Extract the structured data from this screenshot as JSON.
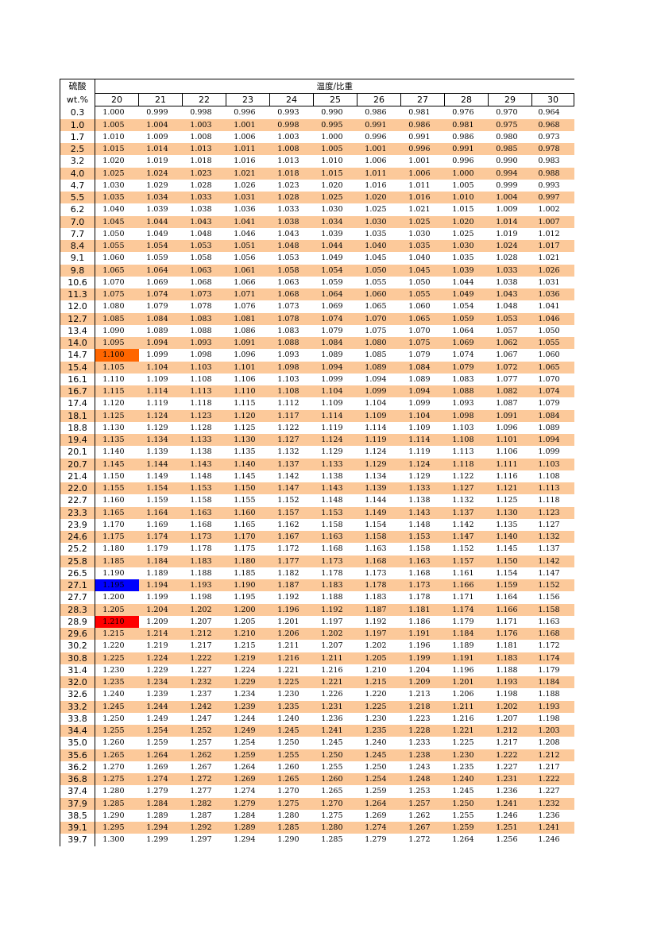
{
  "header": {
    "acid_label": "硫酸",
    "unit_label": "wt.%",
    "title": "温度/比重",
    "temperatures": [
      "20",
      "21",
      "22",
      "23",
      "24",
      "25",
      "26",
      "27",
      "28",
      "29",
      "30"
    ]
  },
  "colors": {
    "shade": "#fcc99a",
    "orange": "#ff6600",
    "blue": "#0000ff",
    "red": "#ff0000"
  },
  "highlights": [
    {
      "row": 20,
      "col": 0,
      "color": "orange"
    },
    {
      "row": 39,
      "col": 0,
      "color": "blue"
    },
    {
      "row": 42,
      "col": 0,
      "color": "red"
    }
  ],
  "rows": [
    {
      "wt": "0.3",
      "values": [
        "1.000",
        "0.999",
        "0.998",
        "0.996",
        "0.993",
        "0.990",
        "0.986",
        "0.981",
        "0.976",
        "0.970",
        "0.964"
      ]
    },
    {
      "wt": "1.0",
      "values": [
        "1.005",
        "1.004",
        "1.003",
        "1.001",
        "0.998",
        "0.995",
        "0.991",
        "0.986",
        "0.981",
        "0.975",
        "0.968"
      ]
    },
    {
      "wt": "1.7",
      "values": [
        "1.010",
        "1.009",
        "1.008",
        "1.006",
        "1.003",
        "1.000",
        "0.996",
        "0.991",
        "0.986",
        "0.980",
        "0.973"
      ]
    },
    {
      "wt": "2.5",
      "values": [
        "1.015",
        "1.014",
        "1.013",
        "1.011",
        "1.008",
        "1.005",
        "1.001",
        "0.996",
        "0.991",
        "0.985",
        "0.978"
      ]
    },
    {
      "wt": "3.2",
      "values": [
        "1.020",
        "1.019",
        "1.018",
        "1.016",
        "1.013",
        "1.010",
        "1.006",
        "1.001",
        "0.996",
        "0.990",
        "0.983"
      ]
    },
    {
      "wt": "4.0",
      "values": [
        "1.025",
        "1.024",
        "1.023",
        "1.021",
        "1.018",
        "1.015",
        "1.011",
        "1.006",
        "1.000",
        "0.994",
        "0.988"
      ]
    },
    {
      "wt": "4.7",
      "values": [
        "1.030",
        "1.029",
        "1.028",
        "1.026",
        "1.023",
        "1.020",
        "1.016",
        "1.011",
        "1.005",
        "0.999",
        "0.993"
      ]
    },
    {
      "wt": "5.5",
      "values": [
        "1.035",
        "1.034",
        "1.033",
        "1.031",
        "1.028",
        "1.025",
        "1.020",
        "1.016",
        "1.010",
        "1.004",
        "0.997"
      ]
    },
    {
      "wt": "6.2",
      "values": [
        "1.040",
        "1.039",
        "1.038",
        "1.036",
        "1.033",
        "1.030",
        "1.025",
        "1.021",
        "1.015",
        "1.009",
        "1.002"
      ]
    },
    {
      "wt": "7.0",
      "values": [
        "1.045",
        "1.044",
        "1.043",
        "1.041",
        "1.038",
        "1.034",
        "1.030",
        "1.025",
        "1.020",
        "1.014",
        "1.007"
      ]
    },
    {
      "wt": "7.7",
      "values": [
        "1.050",
        "1.049",
        "1.048",
        "1.046",
        "1.043",
        "1.039",
        "1.035",
        "1.030",
        "1.025",
        "1.019",
        "1.012"
      ]
    },
    {
      "wt": "8.4",
      "values": [
        "1.055",
        "1.054",
        "1.053",
        "1.051",
        "1.048",
        "1.044",
        "1.040",
        "1.035",
        "1.030",
        "1.024",
        "1.017"
      ]
    },
    {
      "wt": "9.1",
      "values": [
        "1.060",
        "1.059",
        "1.058",
        "1.056",
        "1.053",
        "1.049",
        "1.045",
        "1.040",
        "1.035",
        "1.028",
        "1.021"
      ]
    },
    {
      "wt": "9.8",
      "values": [
        "1.065",
        "1.064",
        "1.063",
        "1.061",
        "1.058",
        "1.054",
        "1.050",
        "1.045",
        "1.039",
        "1.033",
        "1.026"
      ]
    },
    {
      "wt": "10.6",
      "values": [
        "1.070",
        "1.069",
        "1.068",
        "1.066",
        "1.063",
        "1.059",
        "1.055",
        "1.050",
        "1.044",
        "1.038",
        "1.031"
      ]
    },
    {
      "wt": "11.3",
      "values": [
        "1.075",
        "1.074",
        "1.073",
        "1.071",
        "1.068",
        "1.064",
        "1.060",
        "1.055",
        "1.049",
        "1.043",
        "1.036"
      ]
    },
    {
      "wt": "12.0",
      "values": [
        "1.080",
        "1.079",
        "1.078",
        "1.076",
        "1.073",
        "1.069",
        "1.065",
        "1.060",
        "1.054",
        "1.048",
        "1.041"
      ]
    },
    {
      "wt": "12.7",
      "values": [
        "1.085",
        "1.084",
        "1.083",
        "1.081",
        "1.078",
        "1.074",
        "1.070",
        "1.065",
        "1.059",
        "1.053",
        "1.046"
      ]
    },
    {
      "wt": "13.4",
      "values": [
        "1.090",
        "1.089",
        "1.088",
        "1.086",
        "1.083",
        "1.079",
        "1.075",
        "1.070",
        "1.064",
        "1.057",
        "1.050"
      ]
    },
    {
      "wt": "14.0",
      "values": [
        "1.095",
        "1.094",
        "1.093",
        "1.091",
        "1.088",
        "1.084",
        "1.080",
        "1.075",
        "1.069",
        "1.062",
        "1.055"
      ]
    },
    {
      "wt": "14.7",
      "values": [
        "1.100",
        "1.099",
        "1.098",
        "1.096",
        "1.093",
        "1.089",
        "1.085",
        "1.079",
        "1.074",
        "1.067",
        "1.060"
      ]
    },
    {
      "wt": "15.4",
      "values": [
        "1.105",
        "1.104",
        "1.103",
        "1.101",
        "1.098",
        "1.094",
        "1.089",
        "1.084",
        "1.079",
        "1.072",
        "1.065"
      ]
    },
    {
      "wt": "16.1",
      "values": [
        "1.110",
        "1.109",
        "1.108",
        "1.106",
        "1.103",
        "1.099",
        "1.094",
        "1.089",
        "1.083",
        "1.077",
        "1.070"
      ]
    },
    {
      "wt": "16.7",
      "values": [
        "1.115",
        "1.114",
        "1.113",
        "1.110",
        "1.108",
        "1.104",
        "1.099",
        "1.094",
        "1.088",
        "1.082",
        "1.074"
      ]
    },
    {
      "wt": "17.4",
      "values": [
        "1.120",
        "1.119",
        "1.118",
        "1.115",
        "1.112",
        "1.109",
        "1.104",
        "1.099",
        "1.093",
        "1.087",
        "1.079"
      ]
    },
    {
      "wt": "18.1",
      "values": [
        "1.125",
        "1.124",
        "1.123",
        "1.120",
        "1.117",
        "1.114",
        "1.109",
        "1.104",
        "1.098",
        "1.091",
        "1.084"
      ]
    },
    {
      "wt": "18.8",
      "values": [
        "1.130",
        "1.129",
        "1.128",
        "1.125",
        "1.122",
        "1.119",
        "1.114",
        "1.109",
        "1.103",
        "1.096",
        "1.089"
      ]
    },
    {
      "wt": "19.4",
      "values": [
        "1.135",
        "1.134",
        "1.133",
        "1.130",
        "1.127",
        "1.124",
        "1.119",
        "1.114",
        "1.108",
        "1.101",
        "1.094"
      ]
    },
    {
      "wt": "20.1",
      "values": [
        "1.140",
        "1.139",
        "1.138",
        "1.135",
        "1.132",
        "1.129",
        "1.124",
        "1.119",
        "1.113",
        "1.106",
        "1.099"
      ]
    },
    {
      "wt": "20.7",
      "values": [
        "1.145",
        "1.144",
        "1.143",
        "1.140",
        "1.137",
        "1.133",
        "1.129",
        "1.124",
        "1.118",
        "1.111",
        "1.103"
      ]
    },
    {
      "wt": "21.4",
      "values": [
        "1.150",
        "1.149",
        "1.148",
        "1.145",
        "1.142",
        "1.138",
        "1.134",
        "1.129",
        "1.122",
        "1.116",
        "1.108"
      ]
    },
    {
      "wt": "22.0",
      "values": [
        "1.155",
        "1.154",
        "1.153",
        "1.150",
        "1.147",
        "1.143",
        "1.139",
        "1.133",
        "1.127",
        "1.121",
        "1.113"
      ]
    },
    {
      "wt": "22.7",
      "values": [
        "1.160",
        "1.159",
        "1.158",
        "1.155",
        "1.152",
        "1.148",
        "1.144",
        "1.138",
        "1.132",
        "1.125",
        "1.118"
      ]
    },
    {
      "wt": "23.3",
      "values": [
        "1.165",
        "1.164",
        "1.163",
        "1.160",
        "1.157",
        "1.153",
        "1.149",
        "1.143",
        "1.137",
        "1.130",
        "1.123"
      ]
    },
    {
      "wt": "23.9",
      "values": [
        "1.170",
        "1.169",
        "1.168",
        "1.165",
        "1.162",
        "1.158",
        "1.154",
        "1.148",
        "1.142",
        "1.135",
        "1.127"
      ]
    },
    {
      "wt": "24.6",
      "values": [
        "1.175",
        "1.174",
        "1.173",
        "1.170",
        "1.167",
        "1.163",
        "1.158",
        "1.153",
        "1.147",
        "1.140",
        "1.132"
      ]
    },
    {
      "wt": "25.2",
      "values": [
        "1.180",
        "1.179",
        "1.178",
        "1.175",
        "1.172",
        "1.168",
        "1.163",
        "1.158",
        "1.152",
        "1.145",
        "1.137"
      ]
    },
    {
      "wt": "25.8",
      "values": [
        "1.185",
        "1.184",
        "1.183",
        "1.180",
        "1.177",
        "1.173",
        "1.168",
        "1.163",
        "1.157",
        "1.150",
        "1.142"
      ]
    },
    {
      "wt": "26.5",
      "values": [
        "1.190",
        "1.189",
        "1.188",
        "1.185",
        "1.182",
        "1.178",
        "1.173",
        "1.168",
        "1.161",
        "1.154",
        "1.147"
      ]
    },
    {
      "wt": "27.1",
      "values": [
        "1.195",
        "1.194",
        "1.193",
        "1.190",
        "1.187",
        "1.183",
        "1.178",
        "1.173",
        "1.166",
        "1.159",
        "1.152"
      ]
    },
    {
      "wt": "27.7",
      "values": [
        "1.200",
        "1.199",
        "1.198",
        "1.195",
        "1.192",
        "1.188",
        "1.183",
        "1.178",
        "1.171",
        "1.164",
        "1.156"
      ]
    },
    {
      "wt": "28.3",
      "values": [
        "1.205",
        "1.204",
        "1.202",
        "1.200",
        "1.196",
        "1.192",
        "1.187",
        "1.181",
        "1.174",
        "1.166",
        "1.158"
      ]
    },
    {
      "wt": "28.9",
      "values": [
        "1.210",
        "1.209",
        "1.207",
        "1.205",
        "1.201",
        "1.197",
        "1.192",
        "1.186",
        "1.179",
        "1.171",
        "1.163"
      ]
    },
    {
      "wt": "29.6",
      "values": [
        "1.215",
        "1.214",
        "1.212",
        "1.210",
        "1.206",
        "1.202",
        "1.197",
        "1.191",
        "1.184",
        "1.176",
        "1.168"
      ]
    },
    {
      "wt": "30.2",
      "values": [
        "1.220",
        "1.219",
        "1.217",
        "1.215",
        "1.211",
        "1.207",
        "1.202",
        "1.196",
        "1.189",
        "1.181",
        "1.172"
      ]
    },
    {
      "wt": "30.8",
      "values": [
        "1.225",
        "1.224",
        "1.222",
        "1.219",
        "1.216",
        "1.211",
        "1.205",
        "1.199",
        "1.191",
        "1.183",
        "1.174"
      ]
    },
    {
      "wt": "31.4",
      "values": [
        "1.230",
        "1.229",
        "1.227",
        "1.224",
        "1.221",
        "1.216",
        "1.210",
        "1.204",
        "1.196",
        "1.188",
        "1.179"
      ]
    },
    {
      "wt": "32.0",
      "values": [
        "1.235",
        "1.234",
        "1.232",
        "1.229",
        "1.225",
        "1.221",
        "1.215",
        "1.209",
        "1.201",
        "1.193",
        "1.184"
      ]
    },
    {
      "wt": "32.6",
      "values": [
        "1.240",
        "1.239",
        "1.237",
        "1.234",
        "1.230",
        "1.226",
        "1.220",
        "1.213",
        "1.206",
        "1.198",
        "1.188"
      ]
    },
    {
      "wt": "33.2",
      "values": [
        "1.245",
        "1.244",
        "1.242",
        "1.239",
        "1.235",
        "1.231",
        "1.225",
        "1.218",
        "1.211",
        "1.202",
        "1.193"
      ]
    },
    {
      "wt": "33.8",
      "values": [
        "1.250",
        "1.249",
        "1.247",
        "1.244",
        "1.240",
        "1.236",
        "1.230",
        "1.223",
        "1.216",
        "1.207",
        "1.198"
      ]
    },
    {
      "wt": "34.4",
      "values": [
        "1.255",
        "1.254",
        "1.252",
        "1.249",
        "1.245",
        "1.241",
        "1.235",
        "1.228",
        "1.221",
        "1.212",
        "1.203"
      ]
    },
    {
      "wt": "35.0",
      "values": [
        "1.260",
        "1.259",
        "1.257",
        "1.254",
        "1.250",
        "1.245",
        "1.240",
        "1.233",
        "1.225",
        "1.217",
        "1.208"
      ]
    },
    {
      "wt": "35.6",
      "values": [
        "1.265",
        "1.264",
        "1.262",
        "1.259",
        "1.255",
        "1.250",
        "1.245",
        "1.238",
        "1.230",
        "1.222",
        "1.212"
      ]
    },
    {
      "wt": "36.2",
      "values": [
        "1.270",
        "1.269",
        "1.267",
        "1.264",
        "1.260",
        "1.255",
        "1.250",
        "1.243",
        "1.235",
        "1.227",
        "1.217"
      ]
    },
    {
      "wt": "36.8",
      "values": [
        "1.275",
        "1.274",
        "1.272",
        "1.269",
        "1.265",
        "1.260",
        "1.254",
        "1.248",
        "1.240",
        "1.231",
        "1.222"
      ]
    },
    {
      "wt": "37.4",
      "values": [
        "1.280",
        "1.279",
        "1.277",
        "1.274",
        "1.270",
        "1.265",
        "1.259",
        "1.253",
        "1.245",
        "1.236",
        "1.227"
      ]
    },
    {
      "wt": "37.9",
      "values": [
        "1.285",
        "1.284",
        "1.282",
        "1.279",
        "1.275",
        "1.270",
        "1.264",
        "1.257",
        "1.250",
        "1.241",
        "1.232"
      ]
    },
    {
      "wt": "38.5",
      "values": [
        "1.290",
        "1.289",
        "1.287",
        "1.284",
        "1.280",
        "1.275",
        "1.269",
        "1.262",
        "1.255",
        "1.246",
        "1.236"
      ]
    },
    {
      "wt": "39.1",
      "values": [
        "1.295",
        "1.294",
        "1.292",
        "1.289",
        "1.285",
        "1.280",
        "1.274",
        "1.267",
        "1.259",
        "1.251",
        "1.241"
      ]
    },
    {
      "wt": "39.7",
      "values": [
        "1.300",
        "1.299",
        "1.297",
        "1.294",
        "1.290",
        "1.285",
        "1.279",
        "1.272",
        "1.264",
        "1.256",
        "1.246"
      ]
    }
  ]
}
